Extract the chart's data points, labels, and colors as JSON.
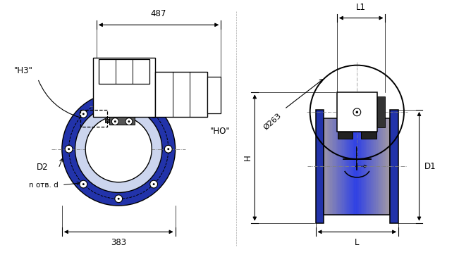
{
  "bg_color": "#ffffff",
  "lc": "#000000",
  "blue_dark": "#2233aa",
  "blue_mid": "#4466cc",
  "blue_light": "#99aadd",
  "blue_pale": "#ccd5ee",
  "blue_fill": "#6688cc",
  "gray_light": "#dddddd",
  "labels": {
    "dim_487": "487",
    "dim_383": "383",
    "dim_H3": "\"Н3\"",
    "dim_HO": "\"НО\"",
    "dim_L1": "L1",
    "dim_L": "L",
    "dim_H": "H",
    "dim_D1": "D1",
    "dim_D2": "D2",
    "dim_d263": "Ø263",
    "dim_n": "n отв. d"
  },
  "fs": 8.5
}
